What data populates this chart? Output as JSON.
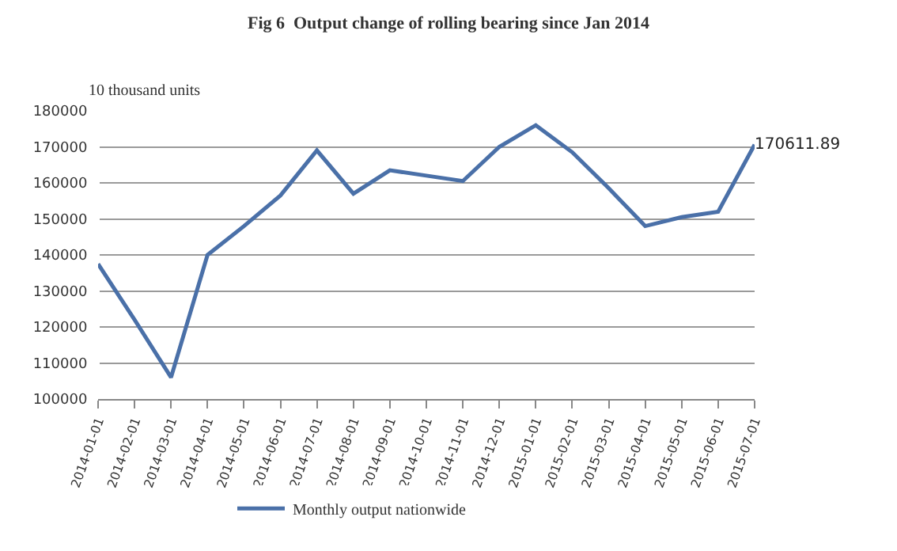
{
  "chart_data": {
    "type": "line",
    "title": "Fig 6  Output change of rolling bearing since Jan 2014",
    "ylabel": "10 thousand units",
    "categories": [
      "2014-01-01",
      "2014-02-01",
      "2014-03-01",
      "2014-04-01",
      "2014-05-01",
      "2014-06-01",
      "2014-07-01",
      "2014-08-01",
      "2014-09-01",
      "2014-10-01",
      "2014-11-01",
      "2014-12-01",
      "2015-01-01",
      "2015-02-01",
      "2015-03-01",
      "2015-04-01",
      "2015-05-01",
      "2015-06-01",
      "2015-07-01"
    ],
    "series": [
      {
        "name": "Monthly output nationwide",
        "color": "#4a70a8",
        "values": [
          137500,
          122000,
          106000,
          140000,
          148000,
          156500,
          169000,
          157000,
          163500,
          162000,
          160500,
          170000,
          176000,
          168500,
          158500,
          148000,
          150500,
          152000,
          170611.89
        ],
        "value_labels": [
          null,
          null,
          null,
          null,
          null,
          null,
          null,
          null,
          null,
          null,
          null,
          null,
          null,
          null,
          null,
          null,
          null,
          null,
          "170611.89"
        ]
      }
    ],
    "ylim": [
      100000,
      180000
    ],
    "yticks": [
      100000,
      110000,
      120000,
      130000,
      140000,
      150000,
      160000,
      170000,
      180000
    ],
    "grid": "y",
    "legend": "bottom",
    "marker": "none",
    "line_style": "solid"
  }
}
